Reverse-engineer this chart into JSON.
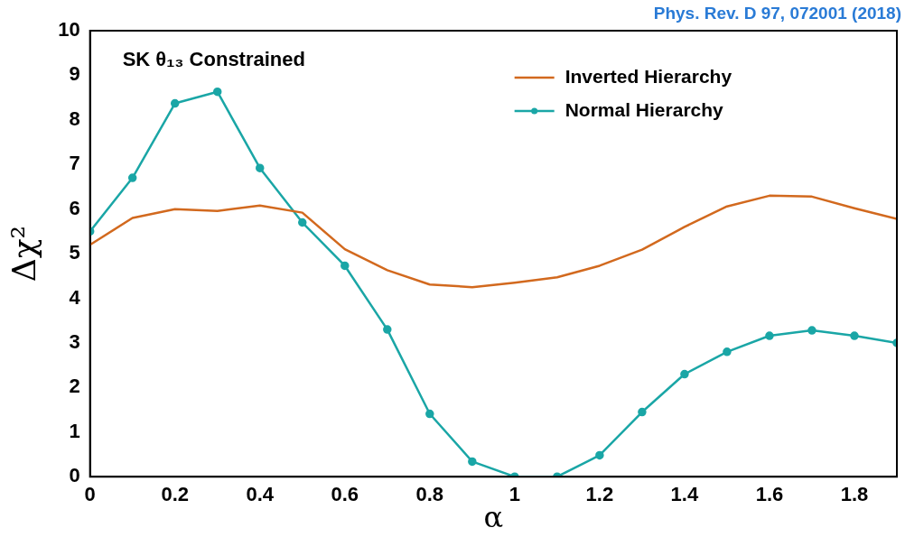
{
  "chart_data": {
    "type": "line",
    "xlabel": "α",
    "ylabel": "Δχ²",
    "annotations": [
      {
        "text": "SK θ₁₃ Constrained"
      },
      {
        "text": "Phys. Rev. D 97, 072001 (2018)"
      }
    ],
    "x": [
      0,
      0.1,
      0.2,
      0.3,
      0.4,
      0.5,
      0.6,
      0.7,
      0.8,
      0.9,
      1.0,
      1.1,
      1.2,
      1.3,
      1.4,
      1.5,
      1.6,
      1.7,
      1.8,
      1.9
    ],
    "series": [
      {
        "name": "Inverted Hierarchy",
        "color": "#d2691e",
        "marker": "none",
        "values": [
          5.2,
          5.8,
          6.0,
          5.96,
          6.08,
          5.92,
          5.1,
          4.63,
          4.31,
          4.25,
          4.35,
          4.47,
          4.73,
          5.09,
          5.6,
          6.06,
          6.3,
          6.28,
          6.02,
          5.78
        ]
      },
      {
        "name": "Normal Hierarchy",
        "color": "#1aa6a6",
        "marker": "circle",
        "values": [
          5.5,
          6.7,
          8.37,
          8.63,
          6.92,
          5.7,
          4.73,
          3.3,
          1.41,
          0.34,
          0,
          0,
          0.48,
          1.45,
          2.3,
          2.8,
          3.16,
          3.28,
          3.16,
          3.0
        ]
      }
    ],
    "xlim": [
      0,
      1.9
    ],
    "xticks": [
      0,
      0.2,
      0.4,
      0.6,
      0.8,
      1,
      1.2,
      1.4,
      1.6,
      1.8
    ],
    "ylim": [
      0,
      10
    ],
    "yticks": [
      0,
      1,
      2,
      3,
      4,
      5,
      6,
      7,
      8,
      9,
      10
    ],
    "grid": false,
    "legend": "top right",
    "line_style": "solid"
  }
}
